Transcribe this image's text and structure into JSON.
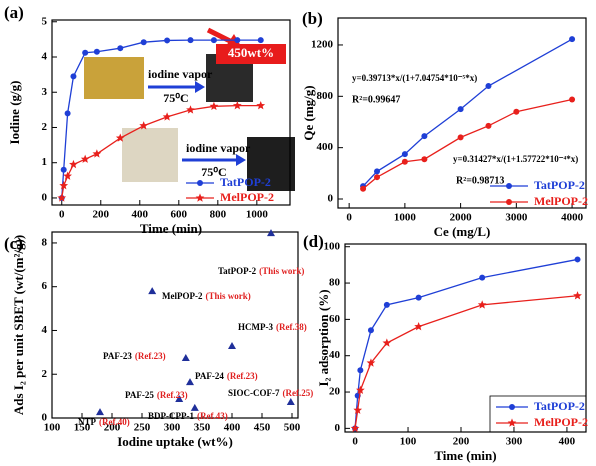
{
  "chart_data": [
    {
      "type": "line",
      "panel_label": "(a)",
      "x_label": "Time (min)",
      "y_label": "Iodine (g/g)",
      "x": [
        0,
        10,
        30,
        60,
        120,
        180,
        300,
        420,
        540,
        660,
        780,
        900,
        1020
      ],
      "series": [
        {
          "name": "TatPOP-2",
          "color": "#1f3fd6",
          "marker": "circle",
          "values": [
            0,
            0.8,
            2.4,
            3.45,
            4.12,
            4.15,
            4.25,
            4.42,
            4.47,
            4.48,
            4.48,
            4.48,
            4.48
          ]
        },
        {
          "name": "MelPOP-2",
          "color": "#e8201c",
          "marker": "star",
          "values": [
            0,
            0.35,
            0.62,
            0.95,
            1.1,
            1.25,
            1.7,
            2.05,
            2.3,
            2.5,
            2.6,
            2.62,
            2.62
          ]
        }
      ],
      "xlim": [
        -50,
        1170
      ],
      "xticks": [
        0,
        200,
        400,
        600,
        800,
        1000
      ],
      "ylim": [
        -0.2,
        5.05
      ],
      "yticks": [
        0,
        1,
        2,
        3,
        4,
        5
      ],
      "legend": "lower right",
      "annotations": [
        "450wt%",
        "iodine vapor",
        "75⁰C",
        "iodine vapor",
        "75⁰C"
      ]
    },
    {
      "type": "line",
      "panel_label": "(b)",
      "x_label": "Ce (mg/L)",
      "y_label": "Qe (mg/g)",
      "series": [
        {
          "name": "TatPOP-2",
          "color": "#1f3fd6",
          "marker": "circle",
          "x": [
            250,
            500,
            1000,
            1350,
            2000,
            2500,
            4000
          ],
          "values": [
            100,
            215,
            350,
            490,
            700,
            880,
            1245
          ]
        },
        {
          "name": "MelPOP-2",
          "color": "#e8201c",
          "marker": "circle",
          "x": [
            250,
            500,
            1000,
            1350,
            2000,
            2500,
            3000,
            4000
          ],
          "values": [
            80,
            170,
            290,
            310,
            480,
            570,
            680,
            775
          ]
        }
      ],
      "xlim": [
        -200,
        4250
      ],
      "xticks": [
        0,
        1000,
        2000,
        3000,
        4000
      ],
      "ylim": [
        -70,
        1410
      ],
      "yticks": [
        0,
        400,
        800,
        1200
      ],
      "legend": "lower right",
      "annotations": [
        "y=0.39713*x/(1+7.04754*10⁻⁵*x)",
        "R²=0.99647",
        "y=0.31427*x/(1+1.57722*10⁻⁴*x)",
        "R²=0.98713"
      ]
    },
    {
      "type": "scatter",
      "panel_label": "(c)",
      "x_label": "Iodine uptake (wt%)",
      "y_label": "Ads I₂ per unit SBET (wt/(m²/g))",
      "color": "#1f2f9a",
      "marker": "triangle",
      "label_color": "#000000",
      "ref_color": "#e02020",
      "labels": [
        "TatPOP-2",
        "MelPOP-2",
        "HCMP-3",
        "PAF-23",
        "PAF-24",
        "PAF-25",
        "SIOC-COF-7",
        "BDP-CPP-1",
        "NTP"
      ],
      "refs": [
        "(This work)",
        "(This work)",
        "(Ref.38)",
        "(Ref.23)",
        "(Ref.23)",
        "(Ref.23)",
        "(Ref.25)",
        "(Ref.43)",
        "(Ref.40)"
      ],
      "x": [
        465,
        267,
        400,
        323,
        330,
        312,
        498,
        338,
        180
      ],
      "values": [
        8.45,
        5.8,
        3.29,
        2.74,
        1.64,
        0.87,
        0.73,
        0.46,
        0.27
      ],
      "xlim": [
        100,
        510
      ],
      "xticks": [
        100,
        150,
        200,
        250,
        300,
        350,
        400,
        450,
        500
      ],
      "ylim": [
        0,
        8.5
      ],
      "yticks": [
        0,
        2,
        4,
        6,
        8
      ]
    },
    {
      "type": "line",
      "panel_label": "(d)",
      "x_label": "Time (min)",
      "y_label": "I₂ adsorption (%)",
      "x": [
        0,
        5,
        10,
        30,
        60,
        120,
        240,
        420
      ],
      "series": [
        {
          "name": "TatPOP-2",
          "color": "#1f3fd6",
          "marker": "circle",
          "values": [
            0,
            18,
            32,
            54,
            68,
            72,
            83,
            93
          ]
        },
        {
          "name": "MelPOP-2",
          "color": "#e8201c",
          "marker": "star",
          "values": [
            0,
            10,
            21,
            36,
            47,
            56,
            68,
            73
          ]
        }
      ],
      "xlim": [
        -19,
        436
      ],
      "xticks": [
        0,
        100,
        200,
        300,
        400
      ],
      "ylim": [
        -2,
        101.5
      ],
      "yticks": [
        0,
        20,
        40,
        60,
        80,
        100
      ],
      "legend": "lower right"
    }
  ]
}
